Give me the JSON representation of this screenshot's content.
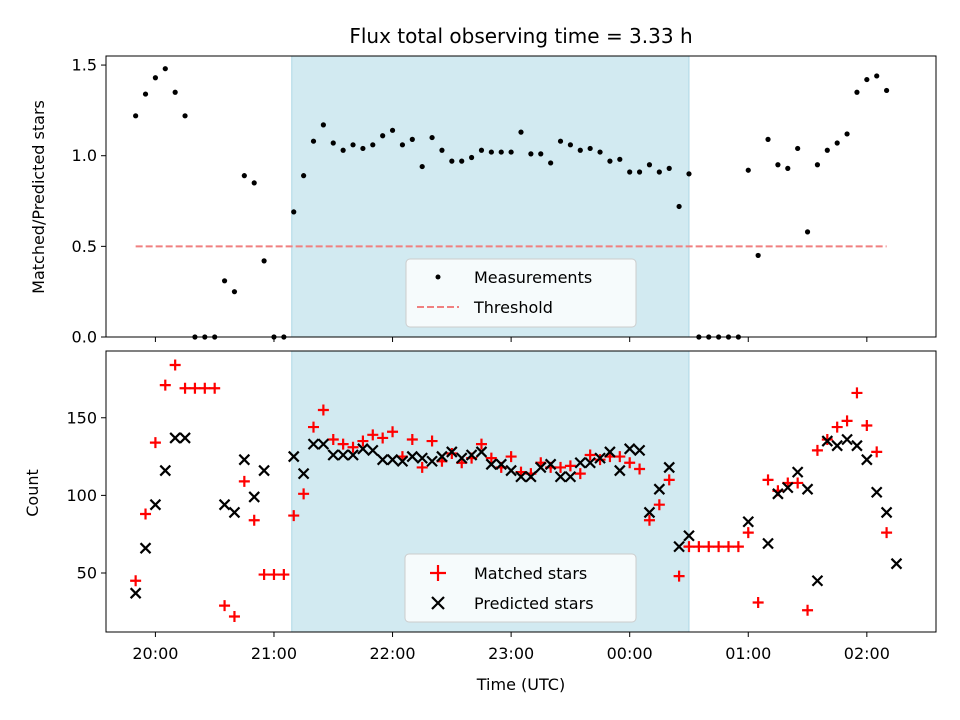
{
  "chart_data": [
    {
      "type": "scatter",
      "title": "Flux total observing time = 3.33 h",
      "ylabel": "Matched/Predicted stars",
      "xlabel": "",
      "x_ticks": [
        "20:00",
        "21:00",
        "22:00",
        "23:00",
        "00:00",
        "01:00",
        "02:00"
      ],
      "ylim": [
        0,
        1.55
      ],
      "y_ticks": [
        "0.0",
        "0.5",
        "1.0",
        "1.5"
      ],
      "shaded_span": {
        "start": "21:09",
        "end": "00:30",
        "color": "#add8e6"
      },
      "threshold": {
        "name": "Threshold",
        "value": 0.5,
        "start": "19:50",
        "end": "02:10",
        "color": "#f08080"
      },
      "legend": {
        "position": "lower center",
        "entries": [
          "Measurements",
          "Threshold"
        ]
      },
      "series": [
        {
          "name": "Measurements",
          "color": "#000000",
          "points": [
            [
              "19:50",
              1.22
            ],
            [
              "19:55",
              1.34
            ],
            [
              "20:00",
              1.43
            ],
            [
              "20:05",
              1.48
            ],
            [
              "20:10",
              1.35
            ],
            [
              "20:15",
              1.22
            ],
            [
              "20:20",
              0
            ],
            [
              "20:25",
              0
            ],
            [
              "20:30",
              0
            ],
            [
              "20:35",
              0.31
            ],
            [
              "20:40",
              0.25
            ],
            [
              "20:45",
              0.89
            ],
            [
              "20:50",
              0.85
            ],
            [
              "20:55",
              0.42
            ],
            [
              "21:00",
              0
            ],
            [
              "21:05",
              0
            ],
            [
              "21:10",
              0.69
            ],
            [
              "21:15",
              0.89
            ],
            [
              "21:20",
              1.08
            ],
            [
              "21:25",
              1.17
            ],
            [
              "21:30",
              1.07
            ],
            [
              "21:35",
              1.03
            ],
            [
              "21:40",
              1.06
            ],
            [
              "21:45",
              1.04
            ],
            [
              "21:50",
              1.06
            ],
            [
              "21:55",
              1.11
            ],
            [
              "22:00",
              1.14
            ],
            [
              "22:05",
              1.06
            ],
            [
              "22:10",
              1.09
            ],
            [
              "22:15",
              0.94
            ],
            [
              "22:20",
              1.1
            ],
            [
              "22:25",
              1.03
            ],
            [
              "22:30",
              0.97
            ],
            [
              "22:35",
              0.97
            ],
            [
              "22:40",
              0.99
            ],
            [
              "22:45",
              1.03
            ],
            [
              "22:50",
              1.02
            ],
            [
              "22:55",
              1.02
            ],
            [
              "23:00",
              1.02
            ],
            [
              "23:05",
              1.13
            ],
            [
              "23:10",
              1.01
            ],
            [
              "23:15",
              1.01
            ],
            [
              "23:20",
              0.96
            ],
            [
              "23:25",
              1.08
            ],
            [
              "23:30",
              1.06
            ],
            [
              "23:35",
              1.03
            ],
            [
              "23:40",
              1.04
            ],
            [
              "23:45",
              1.02
            ],
            [
              "23:50",
              0.97
            ],
            [
              "23:55",
              0.98
            ],
            [
              "00:00",
              0.91
            ],
            [
              "00:05",
              0.91
            ],
            [
              "00:10",
              0.95
            ],
            [
              "00:15",
              0.91
            ],
            [
              "00:20",
              0.93
            ],
            [
              "00:25",
              0.72
            ],
            [
              "00:30",
              0.9
            ],
            [
              "00:35",
              0
            ],
            [
              "00:40",
              0
            ],
            [
              "00:45",
              0
            ],
            [
              "00:50",
              0
            ],
            [
              "00:55",
              0
            ],
            [
              "01:00",
              0.92
            ],
            [
              "01:05",
              0.45
            ],
            [
              "01:10",
              1.09
            ],
            [
              "01:15",
              0.95
            ],
            [
              "01:20",
              0.93
            ],
            [
              "01:25",
              1.04
            ],
            [
              "01:30",
              0.58
            ],
            [
              "01:35",
              0.95
            ],
            [
              "01:40",
              1.03
            ],
            [
              "01:45",
              1.07
            ],
            [
              "01:50",
              1.12
            ],
            [
              "01:55",
              1.35
            ],
            [
              "02:00",
              1.42
            ],
            [
              "02:05",
              1.44
            ],
            [
              "02:10",
              1.36
            ]
          ]
        }
      ]
    },
    {
      "type": "scatter",
      "title": "",
      "ylabel": "Count",
      "xlabel": "Time (UTC)",
      "x_ticks": [
        "20:00",
        "21:00",
        "22:00",
        "23:00",
        "00:00",
        "01:00",
        "02:00"
      ],
      "ylim": [
        12,
        193
      ],
      "y_ticks": [
        "50",
        "100",
        "150"
      ],
      "shaded_span": {
        "start": "21:09",
        "end": "00:30",
        "color": "#add8e6"
      },
      "legend": {
        "position": "lower center",
        "entries": [
          "Matched stars",
          "Predicted stars"
        ]
      },
      "series": [
        {
          "name": "Matched stars",
          "marker": "plus",
          "color": "#ff0000",
          "points": [
            [
              "19:50",
              45
            ],
            [
              "19:55",
              88
            ],
            [
              "20:00",
              134
            ],
            [
              "20:05",
              171
            ],
            [
              "20:10",
              184
            ],
            [
              "20:15",
              169
            ],
            [
              "20:20",
              169
            ],
            [
              "20:25",
              169
            ],
            [
              "20:30",
              169
            ],
            [
              "20:35",
              29
            ],
            [
              "20:40",
              22
            ],
            [
              "20:45",
              109
            ],
            [
              "20:50",
              84
            ],
            [
              "20:55",
              49
            ],
            [
              "21:00",
              49
            ],
            [
              "21:05",
              49
            ],
            [
              "21:10",
              87
            ],
            [
              "21:15",
              101
            ],
            [
              "21:20",
              144
            ],
            [
              "21:25",
              155
            ],
            [
              "21:30",
              136
            ],
            [
              "21:35",
              133
            ],
            [
              "21:40",
              131
            ],
            [
              "21:45",
              135
            ],
            [
              "21:50",
              139
            ],
            [
              "21:55",
              137
            ],
            [
              "22:00",
              141
            ],
            [
              "22:05",
              125
            ],
            [
              "22:10",
              136
            ],
            [
              "22:15",
              118
            ],
            [
              "22:20",
              135
            ],
            [
              "22:25",
              122
            ],
            [
              "22:30",
              127
            ],
            [
              "22:35",
              121
            ],
            [
              "22:40",
              124
            ],
            [
              "22:45",
              133
            ],
            [
              "22:50",
              124
            ],
            [
              "22:55",
              118
            ],
            [
              "23:00",
              125
            ],
            [
              "23:05",
              115
            ],
            [
              "23:10",
              114
            ],
            [
              "23:15",
              121
            ],
            [
              "23:20",
              118
            ],
            [
              "23:25",
              118
            ],
            [
              "23:30",
              119
            ],
            [
              "23:35",
              114
            ],
            [
              "23:40",
              126
            ],
            [
              "23:45",
              123
            ],
            [
              "23:50",
              125
            ],
            [
              "23:55",
              125
            ],
            [
              "00:00",
              121
            ],
            [
              "00:05",
              117
            ],
            [
              "00:10",
              84
            ],
            [
              "00:15",
              94
            ],
            [
              "00:20",
              110
            ],
            [
              "00:25",
              48
            ],
            [
              "00:30",
              67
            ],
            [
              "00:35",
              67
            ],
            [
              "00:40",
              67
            ],
            [
              "00:45",
              67
            ],
            [
              "00:50",
              67
            ],
            [
              "00:55",
              67
            ],
            [
              "01:00",
              76
            ],
            [
              "01:05",
              31
            ],
            [
              "01:10",
              110
            ],
            [
              "01:15",
              103
            ],
            [
              "01:20",
              108
            ],
            [
              "01:25",
              108
            ],
            [
              "01:30",
              26
            ],
            [
              "01:35",
              129
            ],
            [
              "01:40",
              136
            ],
            [
              "01:45",
              144
            ],
            [
              "01:50",
              148
            ],
            [
              "01:55",
              166
            ],
            [
              "02:00",
              145
            ],
            [
              "02:05",
              128
            ],
            [
              "02:10",
              76
            ]
          ]
        },
        {
          "name": "Predicted stars",
          "marker": "x",
          "color": "#000000",
          "points": [
            [
              "19:50",
              37
            ],
            [
              "19:55",
              66
            ],
            [
              "20:00",
              94
            ],
            [
              "20:05",
              116
            ],
            [
              "20:10",
              137
            ],
            [
              "20:15",
              137
            ],
            [
              "20:35",
              94
            ],
            [
              "20:40",
              89
            ],
            [
              "20:45",
              123
            ],
            [
              "20:50",
              99
            ],
            [
              "20:55",
              116
            ],
            [
              "21:10",
              125
            ],
            [
              "21:15",
              114
            ],
            [
              "21:20",
              133
            ],
            [
              "21:25",
              133
            ],
            [
              "21:30",
              126
            ],
            [
              "21:35",
              126
            ],
            [
              "21:40",
              126
            ],
            [
              "21:45",
              130
            ],
            [
              "21:50",
              129
            ],
            [
              "21:55",
              123
            ],
            [
              "22:00",
              123
            ],
            [
              "22:05",
              122
            ],
            [
              "22:10",
              125
            ],
            [
              "22:15",
              124
            ],
            [
              "22:20",
              122
            ],
            [
              "22:25",
              125
            ],
            [
              "22:30",
              128
            ],
            [
              "22:35",
              124
            ],
            [
              "22:40",
              126
            ],
            [
              "22:45",
              128
            ],
            [
              "22:50",
              120
            ],
            [
              "22:55",
              120
            ],
            [
              "23:00",
              116
            ],
            [
              "23:05",
              112
            ],
            [
              "23:10",
              112
            ],
            [
              "23:15",
              118
            ],
            [
              "23:20",
              120
            ],
            [
              "23:25",
              112
            ],
            [
              "23:30",
              112
            ],
            [
              "23:35",
              121
            ],
            [
              "23:40",
              121
            ],
            [
              "23:45",
              124
            ],
            [
              "23:50",
              128
            ],
            [
              "23:55",
              116
            ],
            [
              "00:00",
              130
            ],
            [
              "00:05",
              129
            ],
            [
              "00:10",
              89
            ],
            [
              "00:15",
              104
            ],
            [
              "00:20",
              118
            ],
            [
              "00:25",
              67
            ],
            [
              "00:30",
              74
            ],
            [
              "01:00",
              83
            ],
            [
              "01:10",
              69
            ],
            [
              "01:15",
              101
            ],
            [
              "01:20",
              105
            ],
            [
              "01:25",
              115
            ],
            [
              "01:30",
              104
            ],
            [
              "01:35",
              45
            ],
            [
              "01:40",
              135
            ],
            [
              "01:45",
              132
            ],
            [
              "01:50",
              136
            ],
            [
              "01:55",
              132
            ],
            [
              "02:00",
              123
            ],
            [
              "02:05",
              102
            ],
            [
              "02:10",
              89
            ],
            [
              "02:15",
              56
            ]
          ]
        }
      ]
    }
  ]
}
